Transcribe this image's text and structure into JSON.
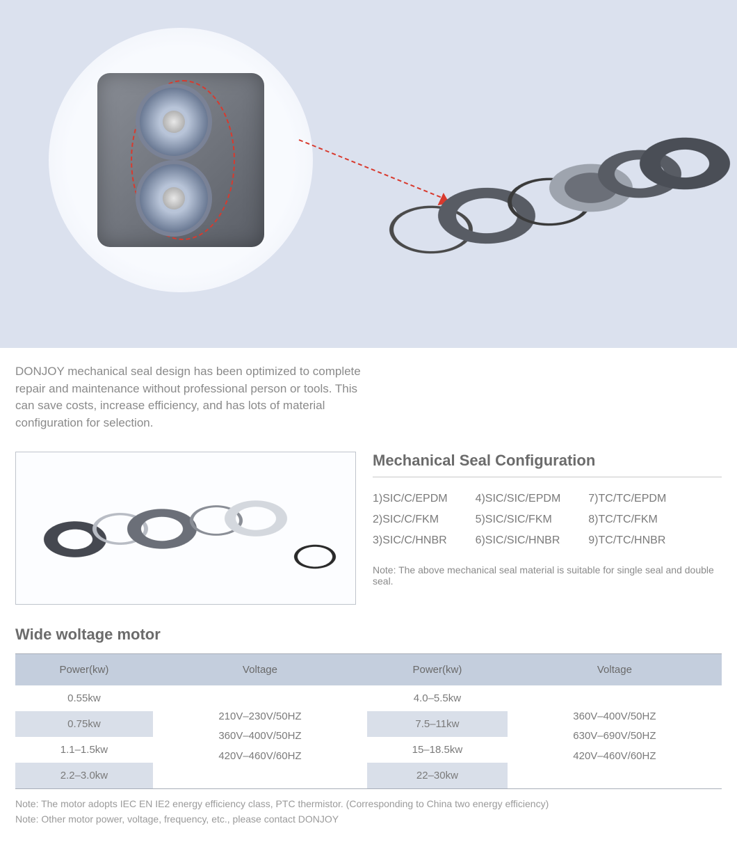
{
  "hero": {
    "bg_color": "#dbe1ee"
  },
  "description": "DONJOY mechanical seal design has been optimized to complete repair and maintenance without professional person or tools. This can save costs, increase efficiency, and has lots of material configuration for selection.",
  "config": {
    "title": "Mechanical Seal Configuration",
    "columns": [
      [
        "1)SIC/C/EPDM",
        "2)SIC/C/FKM",
        "3)SIC/C/HNBR"
      ],
      [
        "4)SIC/SIC/EPDM",
        "5)SIC/SIC/FKM",
        "6)SIC/SIC/HNBR"
      ],
      [
        "7)TC/TC/EPDM",
        "8)TC/TC/FKM",
        "9)TC/TC/HNBR"
      ]
    ],
    "note": "Note: The above mechanical seal material is suitable for single seal and double seal."
  },
  "motor": {
    "title": "Wide woltage motor",
    "headers": [
      "Power(kw)",
      "Voltage",
      "Power(kw)",
      "Voltage"
    ],
    "rows_left": [
      "0.55kw",
      "0.75kw",
      "1.1–1.5kw",
      "2.2–3.0kw"
    ],
    "voltage_left": [
      "210V–230V/50HZ",
      "360V–400V/50HZ",
      "420V–460V/60HZ"
    ],
    "rows_right": [
      "4.0–5.5kw",
      "7.5–11kw",
      "15–18.5kw",
      "22–30kw"
    ],
    "voltage_right": [
      "360V–400V/50HZ",
      "630V–690V/50HZ",
      "420V–460V/60HZ"
    ]
  },
  "notes": [
    "Note: The motor adopts IEC EN IE2 energy efficiency class, PTC thermistor. (Corresponding to China two energy efficiency)",
    "Note: Other motor power, voltage, frequency, etc., please contact DONJOY"
  ],
  "colors": {
    "header_bg": "#c4cedd",
    "stripe_bg": "#d9dfe9",
    "border": "#a8aeb8",
    "text": "#6b6b6b",
    "red": "#d83a2e"
  }
}
